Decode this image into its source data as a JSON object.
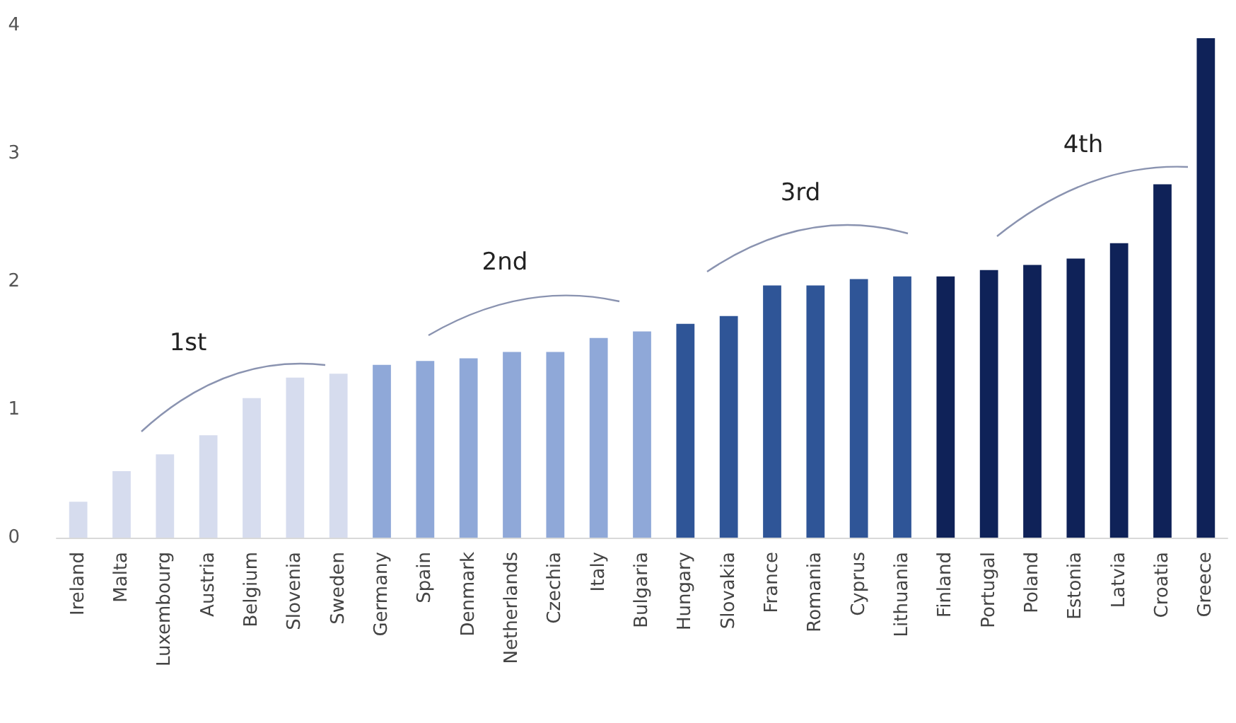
{
  "chart_data": {
    "type": "bar",
    "categories": [
      "Ireland",
      "Malta",
      "Luxembourg",
      "Austria",
      "Belgium",
      "Slovenia",
      "Sweden",
      "Germany",
      "Spain",
      "Denmark",
      "Netherlands",
      "Czechia",
      "Italy",
      "Bulgaria",
      "Hungary",
      "Slovakia",
      "France",
      "Romania",
      "Cyprus",
      "Lithuania",
      "Finland",
      "Portugal",
      "Poland",
      "Estonia",
      "Latvia",
      "Croatia",
      "Greece"
    ],
    "values": [
      0.28,
      0.52,
      0.65,
      0.8,
      1.09,
      1.25,
      1.28,
      1.35,
      1.38,
      1.4,
      1.45,
      1.45,
      1.56,
      1.61,
      1.67,
      1.73,
      1.97,
      1.97,
      2.02,
      2.04,
      2.04,
      2.09,
      2.13,
      2.18,
      2.3,
      2.76,
      3.9
    ],
    "colors": [
      "#d6dcee",
      "#d6dcee",
      "#d6dcee",
      "#d6dcee",
      "#d6dcee",
      "#d6dcee",
      "#d6dcee",
      "#8fa8d8",
      "#8fa8d8",
      "#8fa8d8",
      "#8fa8d8",
      "#8fa8d8",
      "#8fa8d8",
      "#8fa8d8",
      "#2f5597",
      "#2f5597",
      "#2f5597",
      "#2f5597",
      "#2f5597",
      "#2f5597",
      "#0f2258",
      "#0f2258",
      "#0f2258",
      "#0f2258",
      "#0f2258",
      "#0f2258",
      "#0f2258"
    ],
    "ylim": [
      0,
      4
    ],
    "yticks": [
      0,
      1,
      2,
      3,
      4
    ],
    "grid": false,
    "annotations": [
      "1st",
      "2nd",
      "3rd",
      "4th"
    ]
  }
}
